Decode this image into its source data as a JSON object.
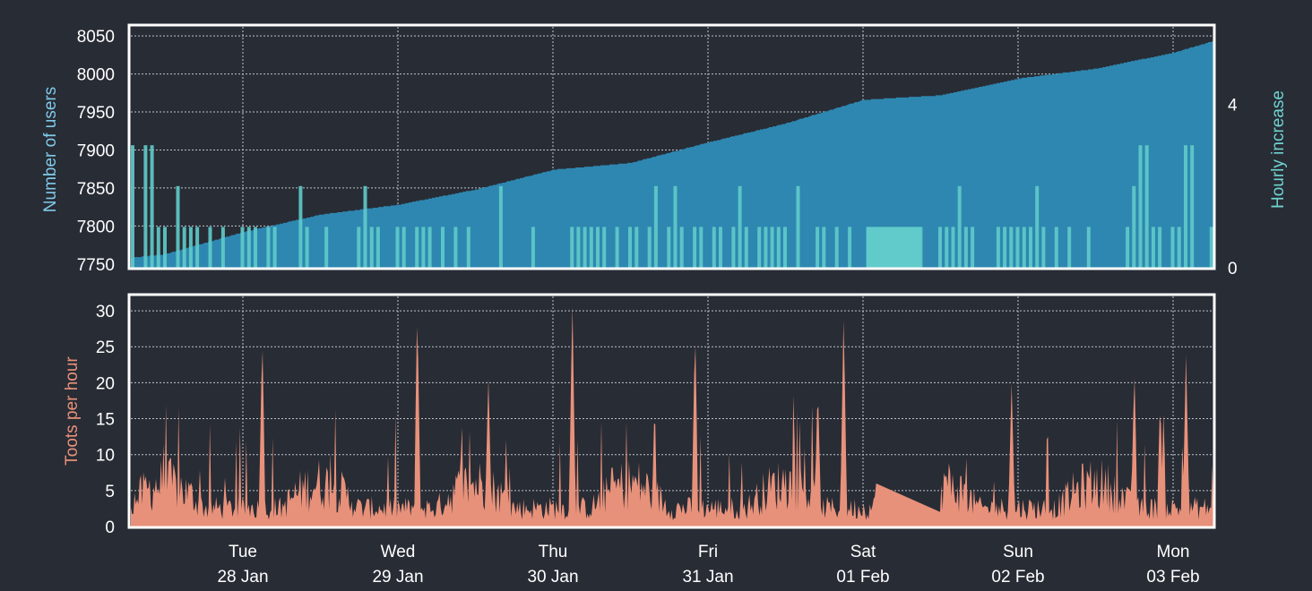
{
  "colors": {
    "background": "#282c35",
    "users_fill": "#2e87b0",
    "hourly_increase": "#60cbca",
    "toots": "#e8917a",
    "frame": "#ffffff",
    "grid": "#bfc3cb",
    "users_label": "#7fc9e8",
    "hourly_label": "#6fd3cf",
    "toots_label": "#e8917a"
  },
  "chart_data": [
    {
      "type": "area",
      "ylabel": "Number of users",
      "y2label": "Hourly increase",
      "ylim": [
        7745,
        8062
      ],
      "y2lim": [
        0,
        5.9
      ],
      "yticks": [
        "7750",
        "7800",
        "7850",
        "7900",
        "7950",
        "8000",
        "8050"
      ],
      "y2ticks": [
        "0",
        "4"
      ],
      "grid": true,
      "series": [
        {
          "name": "Number of users",
          "axis": "left",
          "kind": "area",
          "x": [
            "2020-01-27T00:00",
            "2020-01-27T12:00",
            "2020-01-28T00:00",
            "2020-01-28T12:00",
            "2020-01-29T00:00",
            "2020-01-29T12:00",
            "2020-01-30T00:00",
            "2020-01-30T12:00",
            "2020-01-31T00:00",
            "2020-01-31T12:00",
            "2020-02-01T00:00",
            "2020-02-01T12:00",
            "2020-02-02T00:00",
            "2020-02-02T12:00",
            "2020-02-03T00:00",
            "2020-02-03T12:00"
          ],
          "values": [
            7752,
            7763,
            7792,
            7815,
            7828,
            7848,
            7874,
            7883,
            7910,
            7935,
            7966,
            7972,
            7994,
            8007,
            8028,
            8058
          ]
        },
        {
          "name": "Hourly increase",
          "axis": "right",
          "kind": "bars",
          "note": "hourly values 0-4, mostly 0-1; flat 1 block on 01 Feb",
          "peaks": [
            {
              "x": "2020-01-27T06:00",
              "value": 3
            },
            {
              "x": "2020-01-27T09:00",
              "value": 3
            },
            {
              "x": "2020-02-02T19:00",
              "value": 3
            },
            {
              "x": "2020-02-03T02:00",
              "value": 3
            }
          ]
        }
      ]
    },
    {
      "type": "area",
      "ylabel": "Toots per hour",
      "ylim": [
        0,
        32
      ],
      "yticks": [
        "0",
        "5",
        "10",
        "15",
        "20",
        "25",
        "30"
      ],
      "grid": true,
      "xticks": [
        {
          "day": "Tue",
          "date": "28 Jan"
        },
        {
          "day": "Wed",
          "date": "29 Jan"
        },
        {
          "day": "Thu",
          "date": "30 Jan"
        },
        {
          "day": "Fri",
          "date": "31 Jan"
        },
        {
          "day": "Sat",
          "date": "01 Feb"
        },
        {
          "day": "Sun",
          "date": "02 Feb"
        },
        {
          "day": "Mon",
          "date": "03 Feb"
        }
      ],
      "series": [
        {
          "name": "Toots per hour",
          "kind": "area",
          "peaks": [
            {
              "x": "2020-01-28T03:00",
              "value": 27
            },
            {
              "x": "2020-01-29T03:00",
              "value": 31
            },
            {
              "x": "2020-01-29T14:00",
              "value": 21
            },
            {
              "x": "2020-01-30T03:00",
              "value": 32
            },
            {
              "x": "2020-01-30T22:00",
              "value": 28
            },
            {
              "x": "2020-01-31T17:00",
              "value": 20
            },
            {
              "x": "2020-01-31T21:00",
              "value": 30
            },
            {
              "x": "2020-02-01T02:00",
              "value": 6
            },
            {
              "x": "2020-02-01T12:00",
              "value": 2
            },
            {
              "x": "2020-02-01T23:00",
              "value": 20
            },
            {
              "x": "2020-02-02T18:00",
              "value": 22
            },
            {
              "x": "2020-02-02T22:00",
              "value": 18
            },
            {
              "x": "2020-02-03T02:00",
              "value": 24
            }
          ]
        }
      ]
    }
  ]
}
